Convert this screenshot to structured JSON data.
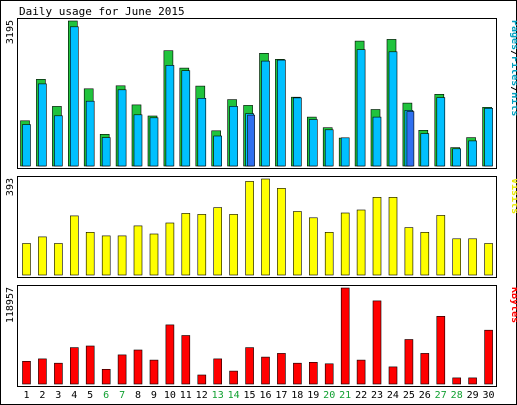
{
  "chart_data": {
    "type": "bar",
    "title": "Daily usage for June 2015",
    "categories": [
      "1",
      "2",
      "3",
      "4",
      "5",
      "6",
      "7",
      "8",
      "9",
      "10",
      "11",
      "12",
      "13",
      "14",
      "15",
      "16",
      "17",
      "18",
      "19",
      "20",
      "21",
      "22",
      "23",
      "24",
      "25",
      "26",
      "27",
      "28",
      "29",
      "30"
    ],
    "weekend_days": [
      "6",
      "7",
      "13",
      "14",
      "20",
      "21",
      "27",
      "28"
    ],
    "panels": [
      {
        "name": "hits-files-pages",
        "ylabel_parts": [
          {
            "text": "Pages",
            "color": "#00a0c0"
          },
          {
            "text": "/",
            "color": "#000000"
          },
          {
            "text": "Files",
            "color": "#00a0c0"
          },
          {
            "text": "/",
            "color": "#000000"
          },
          {
            "text": "Hits",
            "color": "#00a0c0"
          }
        ],
        "ymax_label": "3195",
        "ymax": 3195,
        "series": [
          {
            "name": "Hits",
            "color": "#21c33d",
            "values": [
              997,
              1910,
              1314,
              3195,
              1702,
              699,
              1767,
              1347,
              1102,
              2541,
              2158,
              1761,
              775,
              1463,
              1336,
              2483,
              2350,
              1516,
              1077,
              843,
              615,
              2753,
              1245,
              2790,
              1385,
              786,
              1580,
              406,
              626,
              1293
            ]
          },
          {
            "name": "Files",
            "color": "#00c0ff",
            "values": [
              913,
              1808,
              1107,
              3068,
              1428,
              625,
              1680,
              1129,
              1061,
              2216,
              2099,
              1491,
              661,
              1313,
              1155,
              2312,
              2333,
              1500,
              1024,
              797,
              621,
              2562,
              1078,
              2517,
              1226,
              713,
              1508,
              378,
              552,
              1272
            ]
          },
          {
            "name": "Pages",
            "color": "#3070f0",
            "values": [
              0,
              0,
              0,
              0,
              0,
              0,
              0,
              0,
              0,
              0,
              0,
              0,
              0,
              0,
              1121,
              0,
              0,
              0,
              0,
              0,
              0,
              0,
              0,
              0,
              1198,
              0,
              0,
              0,
              0,
              0
            ]
          }
        ]
      },
      {
        "name": "visits",
        "ylabel_parts": [
          {
            "text": "Visits",
            "color": "#e8e800"
          }
        ],
        "ymax_label": "393",
        "ymax": 393,
        "series": [
          {
            "name": "Visits",
            "color": "#ffff00",
            "values": [
              129,
              156,
              129,
              242,
              175,
              160,
              160,
              201,
              168,
              213,
              252,
              248,
              276,
              248,
              383,
              393,
              355,
              260,
              234,
              175,
              254,
              266,
              318,
              318,
              194,
              175,
              244,
              148,
              148,
              129
            ]
          }
        ]
      },
      {
        "name": "kbytes",
        "ylabel_parts": [
          {
            "text": "KBytes",
            "color": "#ff0000"
          }
        ],
        "ymax_label": "118957",
        "ymax": 118957,
        "series": [
          {
            "name": "KBytes",
            "color": "#ff0000",
            "values": [
              28103,
              31134,
              25802,
              45131,
              47033,
              18209,
              36031,
              42102,
              29592,
              73233,
              60078,
              11129,
              31134,
              15935,
              45131,
              33364,
              37870,
              25802,
              26918,
              25088,
              118957,
              29592,
              102954,
              21209,
              55108,
              37870,
              83855,
              7587,
              7587,
              66650
            ]
          }
        ]
      }
    ]
  }
}
